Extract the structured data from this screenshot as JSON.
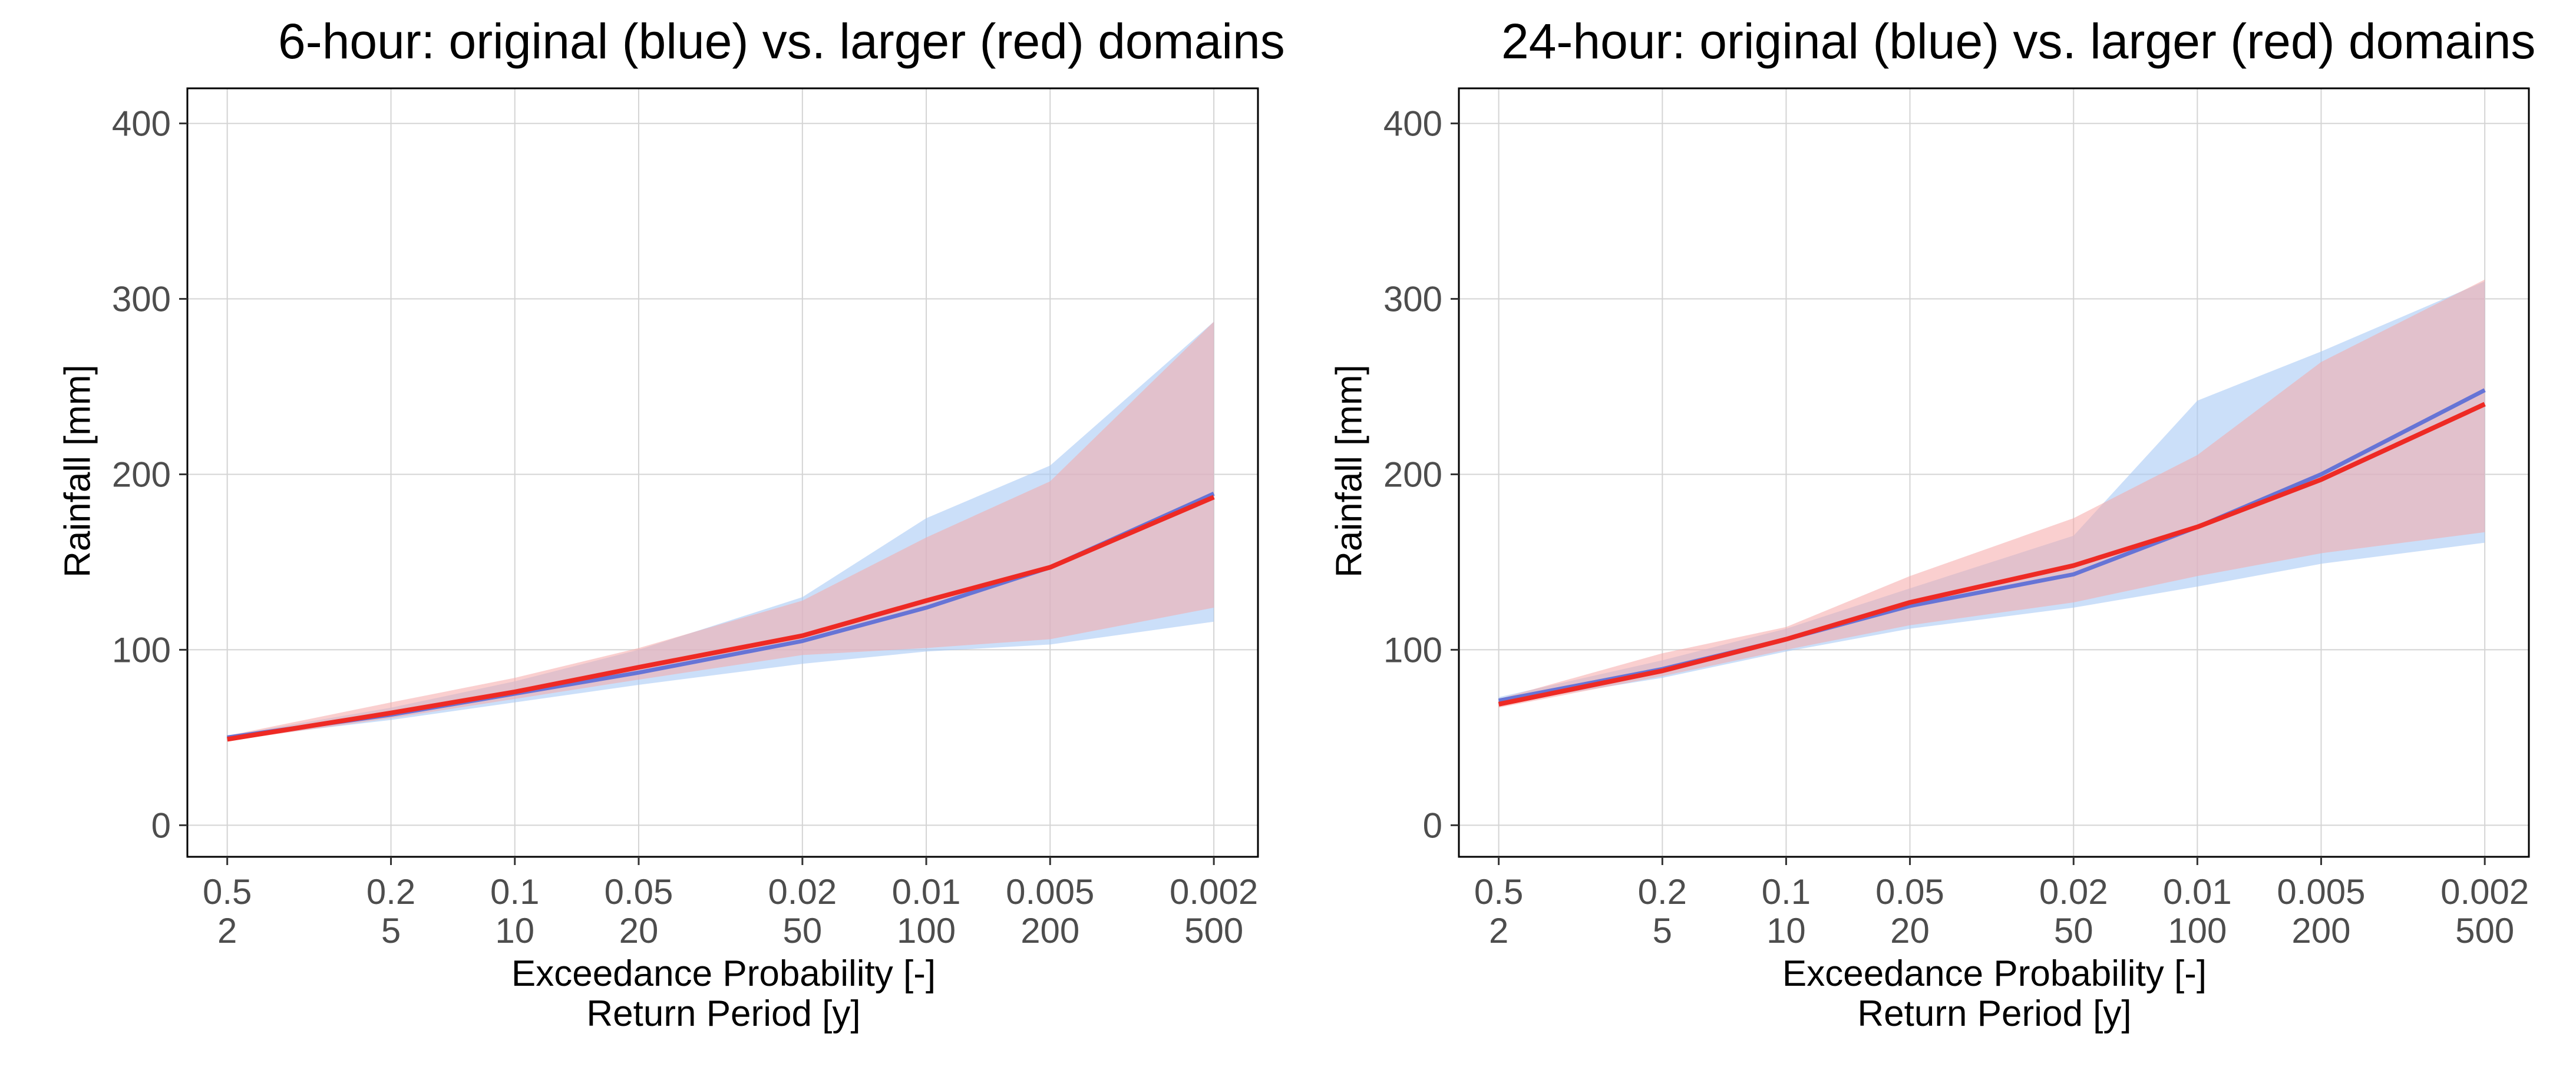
{
  "chart_data": [
    {
      "type": "area",
      "title": "6-hour: original (blue) vs. larger (red) domains",
      "ylabel": "Rainfall [mm]",
      "xlabel": "Exceedance Probability [-]",
      "xlabel2": "Return Period [y]",
      "x_scale": "log return period",
      "x_ticks": [
        {
          "prob": "0.5",
          "rp": "2",
          "value": 2
        },
        {
          "prob": "0.2",
          "rp": "5",
          "value": 5
        },
        {
          "prob": "0.1",
          "rp": "10",
          "value": 10
        },
        {
          "prob": "0.05",
          "rp": "20",
          "value": 20
        },
        {
          "prob": "0.02",
          "rp": "50",
          "value": 50
        },
        {
          "prob": "0.01",
          "rp": "100",
          "value": 100
        },
        {
          "prob": "0.005",
          "rp": "200",
          "value": 200
        },
        {
          "prob": "0.002",
          "rp": "500",
          "value": 500
        }
      ],
      "y_ticks": [
        "0",
        "100",
        "200",
        "300",
        "400"
      ],
      "ylim": [
        -18,
        420
      ],
      "xlim": [
        1.6,
        640
      ],
      "grid": true,
      "series": [
        {
          "color": "#6674d6",
          "band_color": "#a9c9f5",
          "x": [
            2,
            5,
            10,
            20,
            50,
            100,
            200,
            500
          ],
          "y": [
            50,
            63,
            75,
            87,
            105,
            124,
            147,
            189
          ],
          "upper": [
            51,
            67,
            82,
            100,
            130,
            175,
            205,
            287
          ],
          "lower": [
            49,
            60,
            70,
            80,
            92,
            99,
            103,
            116
          ]
        },
        {
          "color": "#ee2a24",
          "band_color": "#f5a8a8",
          "x": [
            2,
            5,
            10,
            20,
            50,
            100,
            200,
            500
          ],
          "y": [
            49,
            64,
            76,
            90,
            108,
            128,
            147,
            187
          ],
          "upper": [
            51,
            70,
            84,
            101,
            128,
            164,
            196,
            287
          ],
          "lower": [
            48,
            61,
            72,
            83,
            97,
            101,
            106,
            124
          ]
        }
      ]
    },
    {
      "type": "area",
      "title": "24-hour: original (blue) vs. larger (red) domains",
      "ylabel": "Rainfall [mm]",
      "xlabel": "Exceedance Probability [-]",
      "xlabel2": "Return Period [y]",
      "x_scale": "log return period",
      "x_ticks": [
        {
          "prob": "0.5",
          "rp": "2",
          "value": 2
        },
        {
          "prob": "0.2",
          "rp": "5",
          "value": 5
        },
        {
          "prob": "0.1",
          "rp": "10",
          "value": 10
        },
        {
          "prob": "0.05",
          "rp": "20",
          "value": 20
        },
        {
          "prob": "0.02",
          "rp": "50",
          "value": 50
        },
        {
          "prob": "0.01",
          "rp": "100",
          "value": 100
        },
        {
          "prob": "0.005",
          "rp": "200",
          "value": 200
        },
        {
          "prob": "0.002",
          "rp": "500",
          "value": 500
        }
      ],
      "y_ticks": [
        "0",
        "100",
        "200",
        "300",
        "400"
      ],
      "ylim": [
        -18,
        420
      ],
      "xlim": [
        1.6,
        640
      ],
      "grid": true,
      "series": [
        {
          "color": "#6674d6",
          "band_color": "#a9c9f5",
          "x": [
            2,
            5,
            10,
            20,
            50,
            100,
            200,
            500
          ],
          "y": [
            71,
            89,
            106,
            125,
            143,
            170,
            200,
            248
          ],
          "upper": [
            73,
            94,
            112,
            135,
            165,
            242,
            270,
            310
          ],
          "lower": [
            69,
            84,
            99,
            112,
            124,
            136,
            149,
            161
          ]
        },
        {
          "color": "#ee2a24",
          "band_color": "#f5a8a8",
          "x": [
            2,
            5,
            10,
            20,
            50,
            100,
            200,
            500
          ],
          "y": [
            69,
            88,
            106,
            127,
            148,
            170,
            197,
            240
          ],
          "upper": [
            72,
            98,
            113,
            142,
            175,
            211,
            264,
            311
          ],
          "lower": [
            67,
            85,
            100,
            114,
            127,
            142,
            155,
            167
          ]
        }
      ]
    }
  ]
}
